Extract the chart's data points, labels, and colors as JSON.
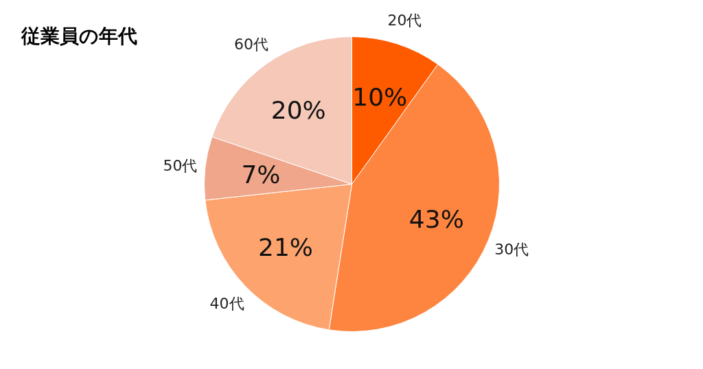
{
  "chart_data": {
    "type": "pie",
    "title": "従業員の年代",
    "categories": [
      "20代",
      "30代",
      "40代",
      "50代",
      "60代"
    ],
    "values": [
      10,
      43,
      21,
      7,
      20
    ],
    "colors": [
      "#fe5a00",
      "#fd8540",
      "#fda46e",
      "#f0a68a",
      "#f5c8b8"
    ],
    "value_labels": [
      "10%",
      "43%",
      "21%",
      "7%",
      "20%"
    ]
  }
}
